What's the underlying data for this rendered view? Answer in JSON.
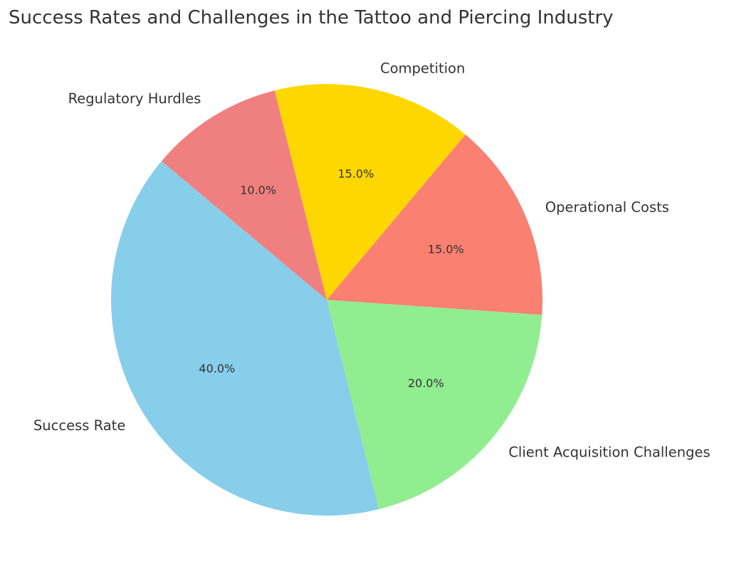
{
  "chart_data": {
    "type": "pie",
    "title": "Success Rates and Challenges in the Tattoo and Piercing Industry",
    "labels": [
      "Success Rate",
      "Client Acquisition Challenges",
      "Operational Costs",
      "Competition",
      "Regulatory Hurdles"
    ],
    "values": [
      40,
      20,
      15,
      15,
      10
    ],
    "pct_labels": [
      "40.0%",
      "20.0%",
      "15.0%",
      "15.0%",
      "10.0%"
    ],
    "colors": [
      "#87CEEB",
      "#90EE90",
      "#FA8072",
      "#FFD700",
      "#F08080"
    ],
    "start_angle_deg": 140,
    "direction": "counterclockwise"
  }
}
